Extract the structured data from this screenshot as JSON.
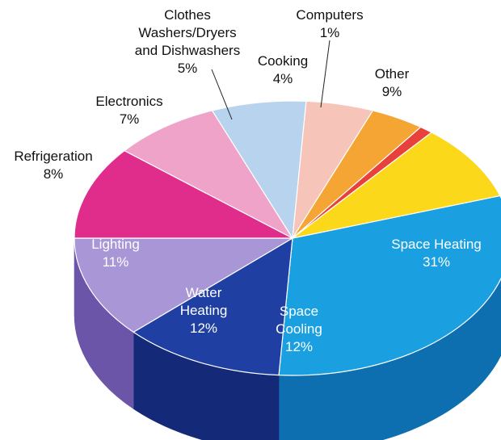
{
  "chart_data": {
    "type": "pie",
    "title": "",
    "slices": [
      {
        "label": "Space Heating",
        "value": 31,
        "value_label": "31%",
        "color": "#1aa0e0",
        "side_color": "#0e6fb0"
      },
      {
        "label": "Space Cooling",
        "value": 12,
        "value_label": "12%",
        "color": "#1f3fa3",
        "side_color": "#142a78"
      },
      {
        "label": "Water Heating",
        "value": 12,
        "value_label": "12%",
        "color": "#a896d6",
        "side_color": "#6a55a8"
      },
      {
        "label": "Lighting",
        "value": 11,
        "value_label": "11%",
        "color": "#e02d8c",
        "side_color": "#a01662"
      },
      {
        "label": "Refrigeration",
        "value": 8,
        "value_label": "8%",
        "color": "#f0a3c8",
        "side_color": "#c06a98"
      },
      {
        "label": "Electronics",
        "value": 7,
        "value_label": "7%",
        "color": "#b7d3ee",
        "side_color": "#7fa3c8"
      },
      {
        "label": "Clothes Washers/Dryers and Dishwashers",
        "value": 5,
        "value_label": "5%",
        "color": "#f6c4b8",
        "side_color": "#cf958a"
      },
      {
        "label": "Cooking",
        "value": 4,
        "value_label": "4%",
        "color": "#f4a533",
        "side_color": "#c77c16"
      },
      {
        "label": "Computers",
        "value": 1,
        "value_label": "1%",
        "color": "#e8403a",
        "side_color": "#b02420"
      },
      {
        "label": "Other",
        "value": 9,
        "value_label": "9%",
        "color": "#fcd81a",
        "side_color": "#d8b000"
      }
    ],
    "label_lines": {
      "Space Heating": [
        "Space Heating",
        "31%"
      ],
      "Space Cooling": [
        "Space",
        "Cooling",
        "12%"
      ],
      "Water Heating": [
        "Water",
        "Heating",
        "12%"
      ],
      "Lighting": [
        "Lighting",
        "11%"
      ],
      "Refrigeration": [
        "Refrigeration",
        "8%"
      ],
      "Electronics": [
        "Electronics",
        "7%"
      ],
      "Clothes Washers/Dryers and Dishwashers": [
        "Clothes",
        "Washers/Dryers",
        "and Dishwashers",
        "5%"
      ],
      "Cooking": [
        "Cooking",
        "4%"
      ],
      "Computers": [
        "Computers",
        "1%"
      ],
      "Other": [
        "Other",
        "9%"
      ]
    }
  }
}
